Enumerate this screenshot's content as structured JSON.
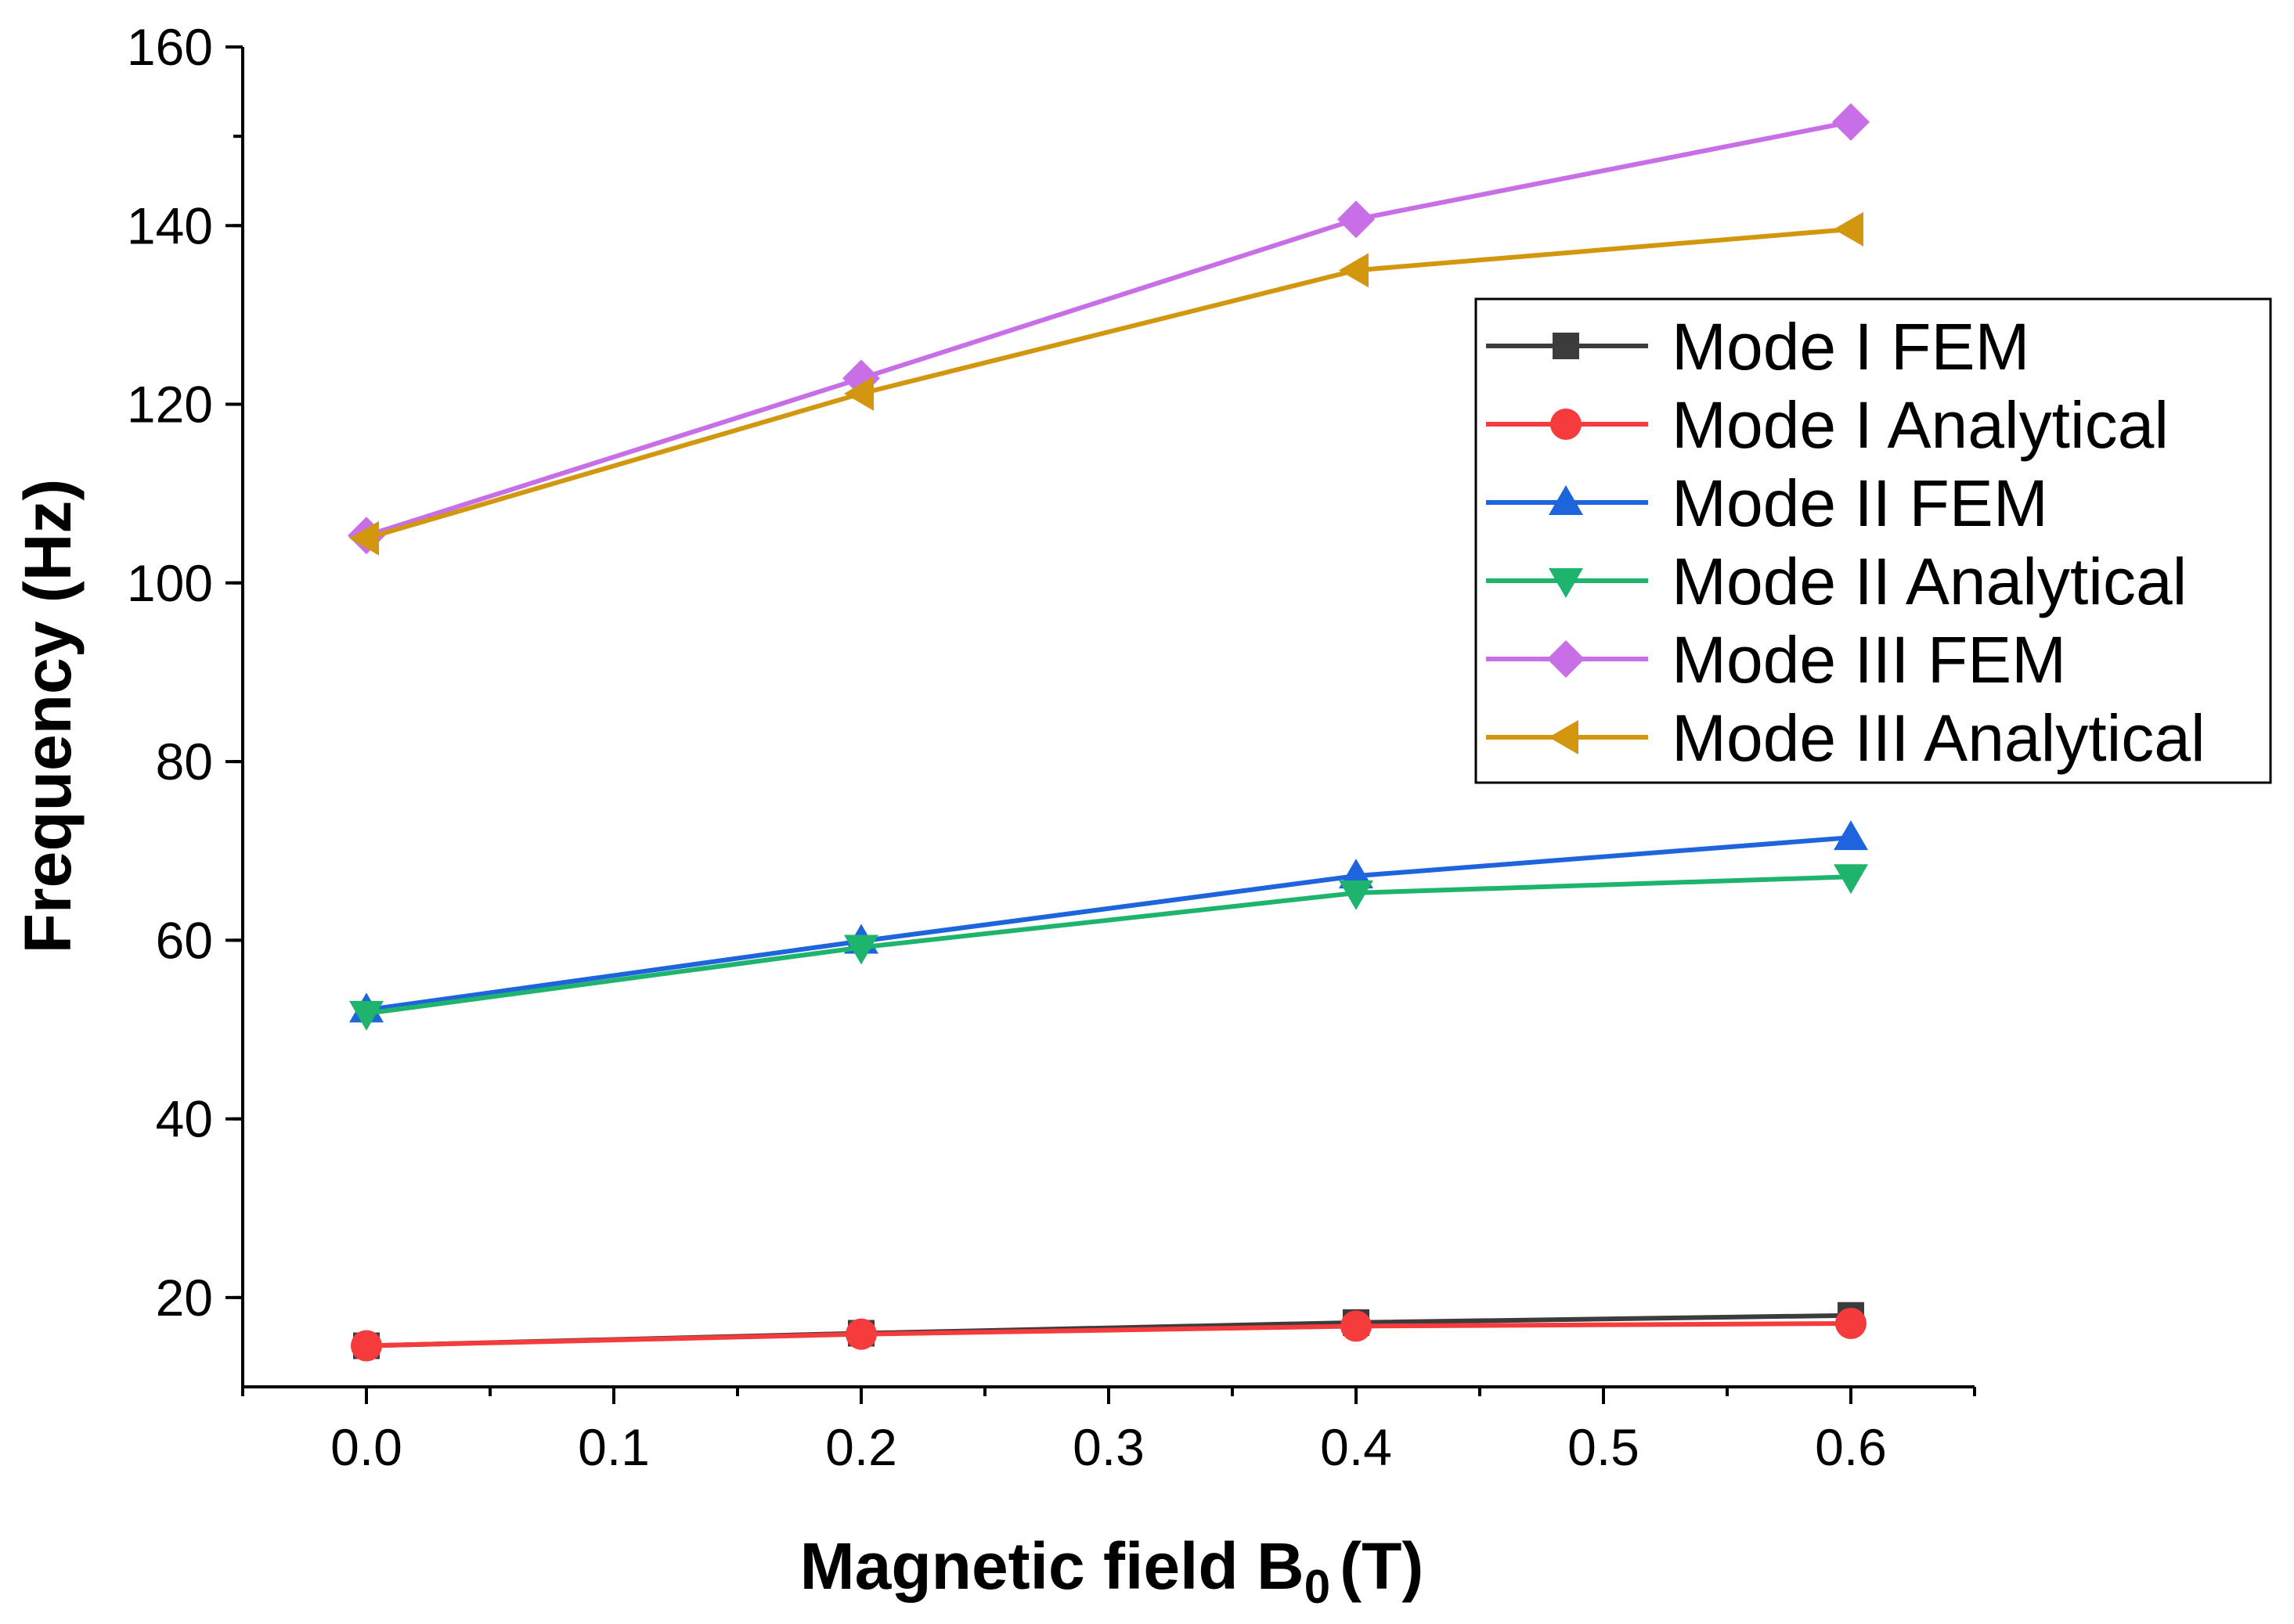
{
  "chart_data": {
    "type": "line",
    "xlabel": "Magnetic field B",
    "xlabel_sub": "0",
    "xlabel_unit": "(T)",
    "ylabel": "Frequency (Hz)",
    "xlim": [
      -0.05,
      0.65
    ],
    "ylim": [
      10,
      160
    ],
    "x_ticks": [
      "0.0",
      "0.1",
      "0.2",
      "0.3",
      "0.4",
      "0.5",
      "0.6"
    ],
    "y_ticks": [
      "20",
      "40",
      "60",
      "80",
      "100",
      "120",
      "140",
      "160"
    ],
    "x": [
      0.0,
      0.2,
      0.4,
      0.6
    ],
    "legend_position": "top-right",
    "series": [
      {
        "name": "Mode I FEM",
        "color": "#3c3c3c",
        "marker": "square",
        "values": [
          14.6,
          16.0,
          17.2,
          18.0
        ]
      },
      {
        "name": "Mode I Analytical",
        "color": "#f53b3b",
        "marker": "circle",
        "values": [
          14.6,
          15.9,
          16.8,
          17.1
        ]
      },
      {
        "name": "Mode II FEM",
        "color": "#1e64dc",
        "marker": "triangle-up",
        "values": [
          52.2,
          59.9,
          67.2,
          71.5
        ]
      },
      {
        "name": "Mode II Analytical",
        "color": "#1eb46e",
        "marker": "triangle-down",
        "values": [
          51.8,
          59.2,
          65.3,
          67.1
        ]
      },
      {
        "name": "Mode III FEM",
        "color": "#c86ee6",
        "marker": "diamond",
        "values": [
          105.3,
          122.9,
          140.7,
          151.6
        ]
      },
      {
        "name": "Mode III Analytical",
        "color": "#d2960f",
        "marker": "triangle-left",
        "values": [
          105.0,
          121.2,
          135.0,
          139.6
        ]
      }
    ]
  }
}
